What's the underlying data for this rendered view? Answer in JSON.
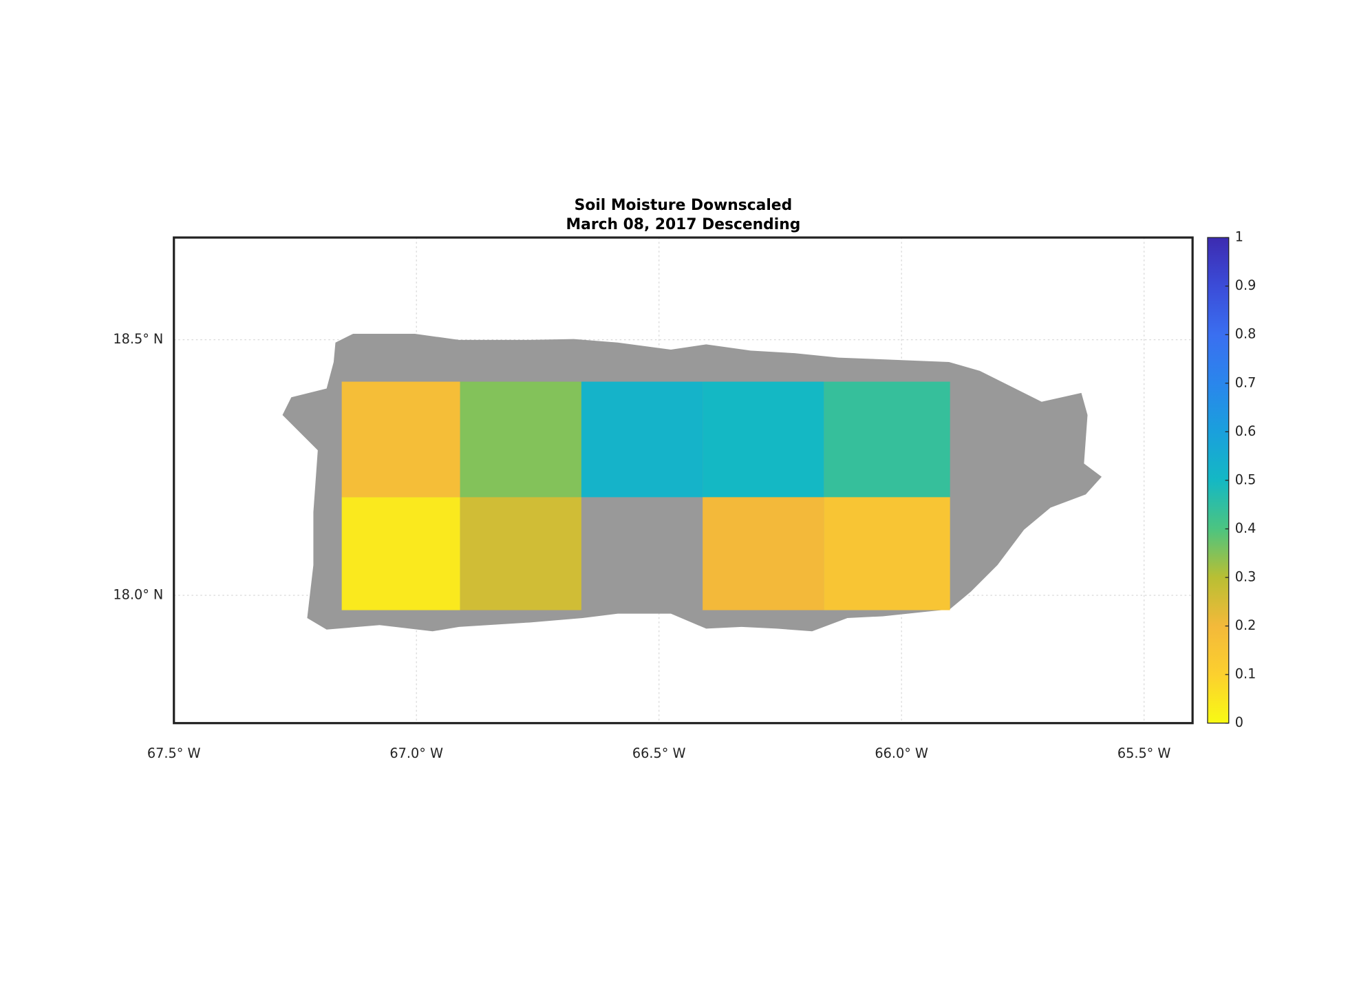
{
  "chart_data": {
    "type": "heatmap",
    "title": "Soil Moisture Downscaled",
    "subtitle": "March 08, 2017 Descending",
    "xlim": [
      -67.5,
      -65.4
    ],
    "xticks": [
      {
        "value": -67.5,
        "label": "67.5° W"
      },
      {
        "value": -67.0,
        "label": "67.0° W"
      },
      {
        "value": -66.5,
        "label": "66.5° W"
      },
      {
        "value": -66.0,
        "label": "66.0° W"
      },
      {
        "value": -65.5,
        "label": "65.5° W"
      }
    ],
    "ylim": [
      17.75,
      18.7
    ],
    "yticks": [
      {
        "value": 18.0,
        "label": "18.0° N"
      },
      {
        "value": 18.5,
        "label": "18.5° N"
      }
    ],
    "grid": true,
    "land_color": "#999999",
    "colorbar": {
      "lim": [
        0,
        1
      ],
      "ticks": [
        0,
        0.1,
        0.2,
        0.3,
        0.4,
        0.5,
        0.6,
        0.7,
        0.8,
        0.9,
        1
      ],
      "colormap": [
        "#f8fa14",
        "#fcd02e",
        "#f3b93a",
        "#b9bf33",
        "#4cc480",
        "#14b8c4",
        "#1aa0dc",
        "#2a86ec",
        "#3a6ff0",
        "#3b4cd8",
        "#3c2bb0"
      ]
    },
    "tiles": [
      {
        "lon": [
          -67.154,
          -66.91
        ],
        "lat": [
          18.192,
          18.418
        ],
        "value": 0.18
      },
      {
        "lon": [
          -66.91,
          -66.66
        ],
        "lat": [
          18.192,
          18.418
        ],
        "value": 0.35
      },
      {
        "lon": [
          -66.66,
          -66.41
        ],
        "lat": [
          18.192,
          18.418
        ],
        "value": 0.52
      },
      {
        "lon": [
          -66.41,
          -66.16
        ],
        "lat": [
          18.192,
          18.418
        ],
        "value": 0.5
      },
      {
        "lon": [
          -66.16,
          -65.9
        ],
        "lat": [
          18.192,
          18.418
        ],
        "value": 0.44
      },
      {
        "lon": [
          -67.154,
          -66.91
        ],
        "lat": [
          17.971,
          18.192
        ],
        "value": 0.04
      },
      {
        "lon": [
          -66.91,
          -66.66
        ],
        "lat": [
          17.971,
          18.192
        ],
        "value": 0.26
      },
      {
        "lon": [
          -66.41,
          -66.16
        ],
        "lat": [
          17.971,
          18.192
        ],
        "value": 0.2
      },
      {
        "lon": [
          -66.16,
          -65.9
        ],
        "lat": [
          17.971,
          18.192
        ],
        "value": 0.15
      }
    ]
  }
}
